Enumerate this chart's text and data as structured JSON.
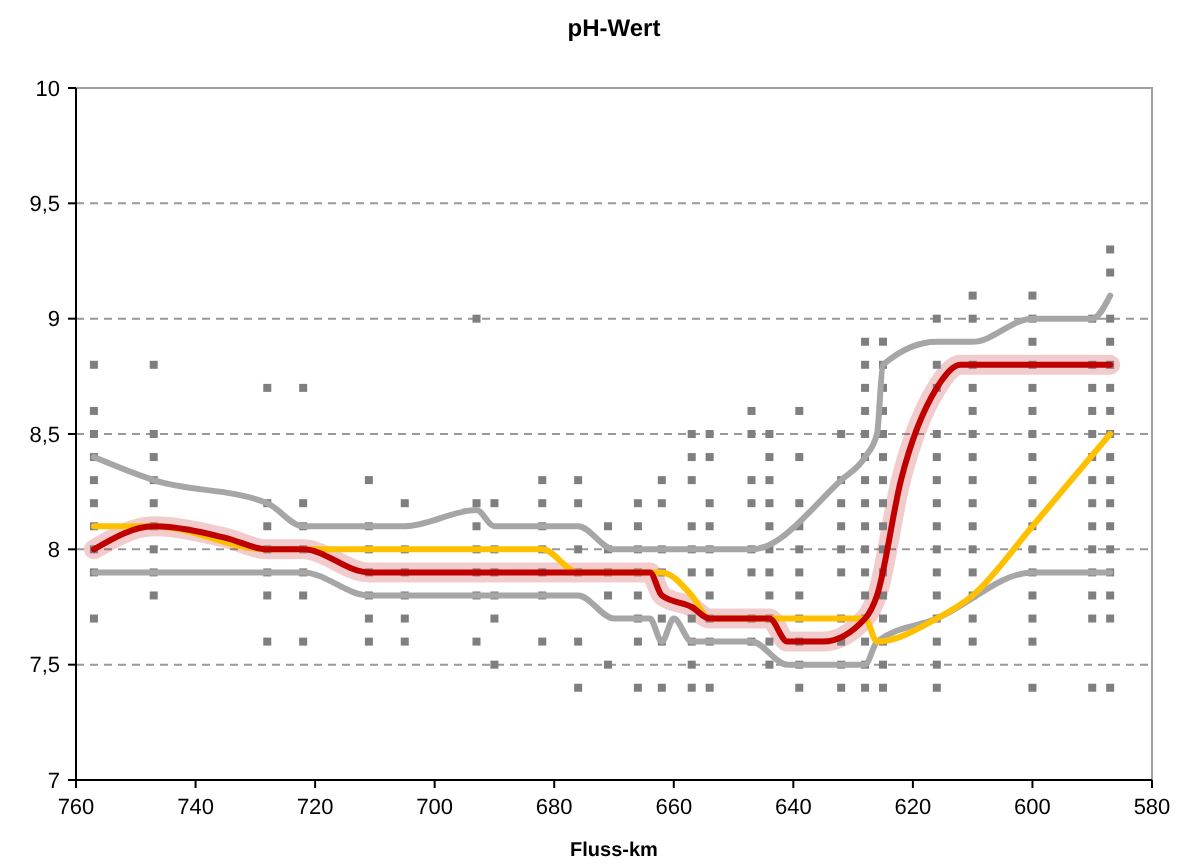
{
  "chart_data": {
    "type": "line",
    "title": "pH-Wert",
    "xlabel": "Fluss-km",
    "xlim": [
      760,
      580
    ],
    "xticks": [
      760,
      740,
      720,
      700,
      680,
      660,
      640,
      620,
      600,
      580
    ],
    "ylim": [
      7,
      10
    ],
    "yticks": [
      7,
      {
        "value": 7.5,
        "label": "7,5"
      },
      8,
      {
        "value": 8.5,
        "label": "8,5"
      },
      9,
      {
        "value": 9.5,
        "label": "9,5"
      },
      10
    ],
    "grid": "y",
    "series": [
      {
        "type": "scatter",
        "color": "#7f7f7f",
        "marker": "square",
        "x": [
          757,
          757,
          757,
          757,
          757,
          757,
          757,
          757,
          757,
          757,
          747,
          747,
          747,
          747,
          747,
          747,
          747,
          747,
          747,
          728,
          728,
          728,
          728,
          728,
          728,
          728,
          722,
          722,
          722,
          722,
          722,
          722,
          722,
          711,
          711,
          711,
          711,
          711,
          711,
          711,
          705,
          705,
          705,
          705,
          705,
          705,
          693,
          693,
          693,
          693,
          693,
          693,
          693,
          690,
          690,
          690,
          690,
          690,
          690,
          682,
          682,
          682,
          682,
          682,
          682,
          682,
          676,
          676,
          676,
          676,
          676,
          676,
          671,
          671,
          671,
          671,
          671,
          666,
          666,
          666,
          666,
          666,
          666,
          666,
          666,
          662,
          662,
          662,
          662,
          662,
          662,
          662,
          657,
          657,
          657,
          657,
          657,
          657,
          657,
          657,
          657,
          657,
          654,
          654,
          654,
          654,
          654,
          654,
          654,
          654,
          654,
          654,
          647,
          647,
          647,
          647,
          647,
          647,
          647,
          647,
          644,
          644,
          644,
          644,
          644,
          644,
          644,
          644,
          644,
          644,
          644,
          639,
          639,
          639,
          639,
          639,
          639,
          639,
          639,
          639,
          639,
          639,
          632,
          632,
          632,
          632,
          632,
          632,
          632,
          632,
          632,
          632,
          628,
          628,
          628,
          628,
          628,
          628,
          628,
          628,
          628,
          628,
          628,
          628,
          628,
          628,
          628,
          628,
          625,
          625,
          625,
          625,
          625,
          625,
          625,
          625,
          625,
          625,
          625,
          625,
          625,
          625,
          625,
          625,
          616,
          616,
          616,
          616,
          616,
          616,
          616,
          616,
          616,
          616,
          616,
          616,
          616,
          616,
          616,
          610,
          610,
          610,
          610,
          610,
          610,
          610,
          610,
          610,
          610,
          610,
          610,
          610,
          610,
          610,
          600,
          600,
          600,
          600,
          600,
          600,
          600,
          600,
          600,
          600,
          600,
          600,
          600,
          600,
          600,
          600,
          600,
          590,
          590,
          590,
          590,
          590,
          590,
          590,
          590,
          590,
          590,
          590,
          590,
          590,
          590,
          587,
          587,
          587,
          587,
          587,
          587,
          587,
          587,
          587,
          587,
          587,
          587,
          587,
          587,
          587,
          587,
          587
        ],
        "values": [
          7.7,
          7.9,
          8.0,
          8.1,
          8.2,
          8.3,
          8.4,
          8.5,
          8.6,
          8.8,
          7.8,
          7.9,
          8.0,
          8.1,
          8.2,
          8.3,
          8.4,
          8.5,
          8.8,
          7.6,
          7.8,
          7.9,
          8.0,
          8.1,
          8.2,
          8.7,
          7.6,
          7.8,
          7.9,
          8.0,
          8.1,
          8.2,
          8.7,
          7.6,
          7.7,
          7.8,
          7.9,
          8.0,
          8.1,
          8.3,
          7.6,
          7.7,
          7.8,
          7.9,
          8.0,
          8.2,
          7.6,
          7.8,
          7.9,
          8.0,
          8.1,
          8.2,
          9.0,
          7.5,
          7.7,
          7.8,
          7.9,
          8.0,
          8.2,
          7.6,
          7.8,
          7.9,
          8.0,
          8.1,
          8.2,
          8.3,
          7.4,
          7.6,
          7.9,
          8.0,
          8.2,
          8.3,
          7.5,
          7.8,
          7.9,
          8.0,
          8.1,
          7.4,
          7.6,
          7.7,
          7.8,
          7.9,
          8.0,
          8.1,
          8.2,
          7.4,
          7.6,
          7.7,
          7.9,
          8.0,
          8.2,
          8.3,
          7.4,
          7.5,
          7.6,
          7.7,
          7.9,
          8.0,
          8.1,
          8.3,
          8.4,
          8.5,
          7.4,
          7.6,
          7.7,
          7.8,
          7.9,
          8.0,
          8.1,
          8.2,
          8.4,
          8.5,
          7.6,
          7.7,
          7.9,
          8.0,
          8.2,
          8.3,
          8.5,
          8.6,
          7.5,
          7.6,
          7.7,
          7.8,
          7.9,
          8.0,
          8.1,
          8.2,
          8.3,
          8.4,
          8.5,
          7.4,
          7.5,
          7.6,
          7.7,
          7.8,
          7.9,
          8.0,
          8.1,
          8.2,
          8.4,
          8.6,
          7.4,
          7.5,
          7.6,
          7.7,
          7.9,
          8.0,
          8.1,
          8.2,
          8.3,
          8.5,
          7.4,
          7.5,
          7.6,
          7.7,
          7.8,
          7.9,
          8.0,
          8.1,
          8.2,
          8.3,
          8.4,
          8.5,
          8.6,
          8.7,
          8.8,
          8.9,
          7.4,
          7.5,
          7.6,
          7.7,
          7.8,
          7.9,
          8.0,
          8.1,
          8.2,
          8.3,
          8.4,
          8.5,
          8.6,
          8.7,
          8.8,
          8.9,
          7.4,
          7.5,
          7.6,
          7.7,
          7.8,
          7.9,
          8.0,
          8.1,
          8.2,
          8.3,
          8.4,
          8.5,
          8.7,
          8.8,
          9.0,
          7.6,
          7.7,
          7.8,
          7.9,
          8.0,
          8.1,
          8.2,
          8.3,
          8.4,
          8.5,
          8.6,
          8.7,
          8.8,
          9.0,
          9.1,
          7.4,
          7.6,
          7.7,
          7.8,
          7.9,
          8.0,
          8.1,
          8.2,
          8.3,
          8.4,
          8.5,
          8.6,
          8.7,
          8.8,
          8.9,
          9.0,
          9.1,
          7.4,
          7.7,
          7.8,
          7.9,
          8.0,
          8.1,
          8.2,
          8.3,
          8.4,
          8.5,
          8.6,
          8.7,
          8.8,
          9.0,
          7.4,
          7.7,
          7.8,
          7.9,
          8.0,
          8.1,
          8.2,
          8.3,
          8.4,
          8.5,
          8.6,
          8.7,
          8.8,
          8.9,
          9.0,
          9.2,
          9.3
        ]
      },
      {
        "color": "#a6a6a6",
        "x": [
          757,
          747,
          728,
          722,
          705,
          693,
          690,
          676,
          670,
          647,
          632,
          628,
          626,
          625,
          616,
          610,
          600,
          590,
          587
        ],
        "values": [
          8.4,
          8.3,
          8.2,
          8.1,
          8.1,
          8.17,
          8.1,
          8.1,
          8.0,
          8.0,
          8.3,
          8.4,
          8.5,
          8.8,
          8.9,
          8.9,
          9.0,
          9.0,
          9.1
        ]
      },
      {
        "color": "#a6a6a6",
        "x": [
          757,
          722,
          711,
          705,
          676,
          670,
          664,
          662,
          660,
          657,
          647,
          641,
          628,
          626,
          616,
          600,
          587
        ],
        "values": [
          7.9,
          7.9,
          7.8,
          7.8,
          7.8,
          7.7,
          7.7,
          7.6,
          7.7,
          7.6,
          7.6,
          7.5,
          7.5,
          7.6,
          7.7,
          7.9,
          7.9
        ]
      },
      {
        "color": "#ffc000",
        "x": [
          757,
          747,
          728,
          705,
          682,
          676,
          662,
          657,
          654,
          647,
          628,
          626,
          616,
          610,
          600,
          587
        ],
        "values": [
          8.1,
          8.1,
          8.0,
          8.0,
          8.0,
          7.9,
          7.9,
          7.8,
          7.7,
          7.7,
          7.7,
          7.6,
          7.7,
          7.8,
          8.1,
          8.5
        ]
      },
      {
        "color": "#c00000",
        "x": [
          757,
          747,
          735,
          728,
          722,
          711,
          705,
          690,
          670,
          664,
          662,
          657,
          654,
          647,
          644,
          641,
          635,
          628,
          626,
          622,
          616,
          612,
          600,
          587
        ],
        "values": [
          8.0,
          8.1,
          8.05,
          8.0,
          8.0,
          7.9,
          7.9,
          7.9,
          7.9,
          7.9,
          7.8,
          7.75,
          7.7,
          7.7,
          7.7,
          7.6,
          7.6,
          7.7,
          7.8,
          8.3,
          8.7,
          8.8,
          8.8,
          8.8
        ]
      }
    ]
  }
}
